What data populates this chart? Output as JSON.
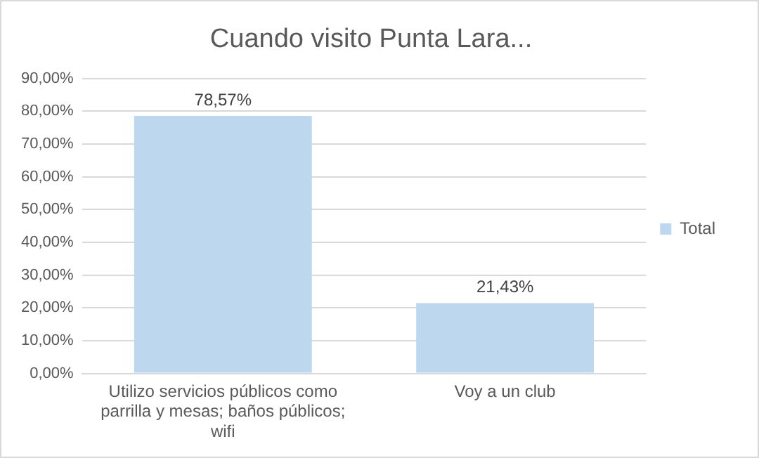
{
  "chart_data": {
    "type": "bar",
    "title": "Cuando visito Punta Lara...",
    "categories": [
      "Utilizo servicios públicos como parrilla y mesas; baños públicos; wifi",
      "Voy a un club"
    ],
    "series": [
      {
        "name": "Total",
        "color": "#bdd7ee",
        "values": [
          78.57,
          21.43
        ],
        "value_labels": [
          "78,57%",
          "21,43%"
        ]
      }
    ],
    "ylim": [
      0,
      90
    ],
    "yticks": [
      {
        "value": 0,
        "label": "0,00%"
      },
      {
        "value": 10,
        "label": "10,00%"
      },
      {
        "value": 20,
        "label": "20,00%"
      },
      {
        "value": 30,
        "label": "30,00%"
      },
      {
        "value": 40,
        "label": "40,00%"
      },
      {
        "value": 50,
        "label": "50,00%"
      },
      {
        "value": 60,
        "label": "60,00%"
      },
      {
        "value": 70,
        "label": "70,00%"
      },
      {
        "value": 80,
        "label": "80,00%"
      },
      {
        "value": 90,
        "label": "90,00%"
      }
    ],
    "grid": "y",
    "legend": "right"
  }
}
